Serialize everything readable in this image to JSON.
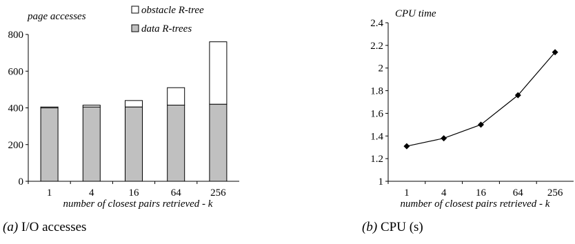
{
  "chart_data": [
    {
      "type": "bar",
      "stacked": true,
      "ylabel": "page accesses",
      "xlabel": "number of closest pairs retrieved - k",
      "caption_label": "(a)",
      "caption_text": "I/O accesses",
      "categories": [
        "1",
        "4",
        "16",
        "64",
        "256"
      ],
      "yticks": [
        "0",
        "200",
        "400",
        "600",
        "800"
      ],
      "ylim": [
        0,
        800
      ],
      "series": [
        {
          "name": "data R-trees",
          "values": [
            400,
            405,
            405,
            415,
            420
          ],
          "color": "#c0c0c0"
        },
        {
          "name": "obstacle R-tree",
          "values": [
            5,
            10,
            35,
            95,
            340
          ],
          "color": "#ffffff"
        }
      ],
      "legend_position": "top"
    },
    {
      "type": "line",
      "ylabel": "CPU time",
      "xlabel": "number of closest pairs retrieved - k",
      "caption_label": "(b)",
      "caption_text": "CPU (s)",
      "categories": [
        "1",
        "4",
        "16",
        "64",
        "256"
      ],
      "yticks": [
        "1",
        "1.2",
        "1.4",
        "1.6",
        "1.8",
        "2",
        "2.2",
        "2.4"
      ],
      "ylim": [
        1,
        2.4
      ],
      "series": [
        {
          "values": [
            1.31,
            1.38,
            1.5,
            1.76,
            2.14
          ],
          "color": "#000000"
        }
      ]
    }
  ]
}
